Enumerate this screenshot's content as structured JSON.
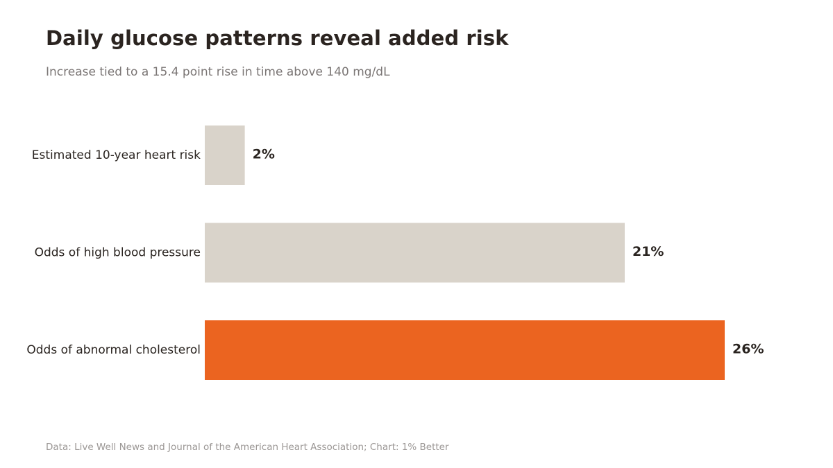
{
  "header": {
    "title": "Daily glucose patterns reveal added risk",
    "subtitle": "Increase tied to a 15.4 point rise in time above 140 mg/dL"
  },
  "footer": {
    "source": "Data: Live Well News and Journal of the American Heart Association; Chart: 1% Better"
  },
  "colors": {
    "bar_default": "#d9d3ca",
    "bar_highlight": "#eb6420",
    "label_text": "#2a2420",
    "value_text": "#2a2420"
  },
  "chart_data": {
    "type": "bar",
    "orientation": "horizontal",
    "title": "Daily glucose patterns reveal added risk",
    "subtitle": "Increase tied to a 15.4 point rise in time above 140 mg/dL",
    "categories": [
      "Estimated 10-year heart risk",
      "Odds of high blood pressure",
      "Odds of abnormal cholesterol"
    ],
    "values": [
      2,
      21,
      26
    ],
    "value_labels": [
      "2%",
      "21%",
      "26%"
    ],
    "highlight_index": 2,
    "unit": "%",
    "xlim": [
      0,
      26
    ],
    "grid": false,
    "legend": "none"
  }
}
